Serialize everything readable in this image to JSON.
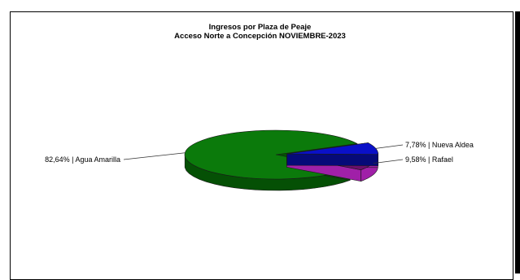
{
  "chart_data": {
    "type": "pie",
    "title": "Ingresos por Plaza de Peaje",
    "subtitle": "Acceso Norte a Concepción NOVIEMBRE-2023",
    "slices": [
      {
        "label": "7,78% | Nueva Aldea",
        "name": "Nueva Aldea",
        "value": 7.78,
        "color": "#0a10c8",
        "dark": "#060a78"
      },
      {
        "label": "9,58% | Rafael",
        "name": "Rafael",
        "value": 9.58,
        "color": "#6b0f6b",
        "dark": "#a020a8"
      },
      {
        "label": "82,64% | Agua Amarilla",
        "name": "Agua Amarilla",
        "value": 82.64,
        "color": "#0b7a0b",
        "dark": "#055005"
      }
    ],
    "legend": "none",
    "grid": false
  }
}
